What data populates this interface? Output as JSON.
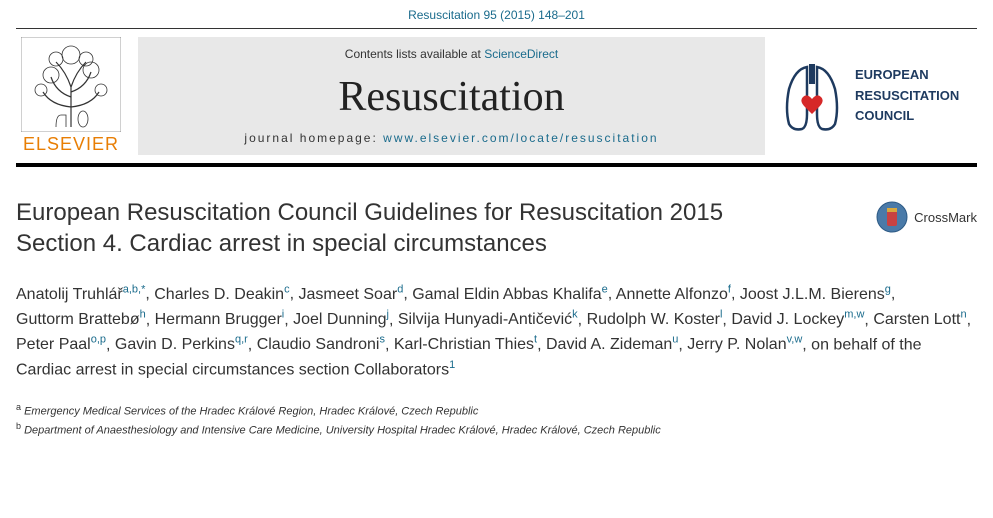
{
  "citation": "Resuscitation 95 (2015) 148–201",
  "masthead": {
    "elsevier_label": "ELSEVIER",
    "contents_prefix": "Contents lists available at ",
    "sciencedirect": "ScienceDirect",
    "journal_title": "Resuscitation",
    "homepage_prefix": "journal homepage: ",
    "homepage_url": "www.elsevier.com/locate/resuscitation",
    "erc_line1": "EUROPEAN",
    "erc_line2": "RESUSCITATION",
    "erc_line3": "COUNCIL"
  },
  "colors": {
    "link": "#1a6b8c",
    "elsevier_orange": "#e87e04",
    "erc_navy": "#1e3a5f",
    "erc_red": "#d62828",
    "gray_box": "#e8e8e8",
    "crossmark_blue": "#4a7aa8",
    "crossmark_red": "#c84242",
    "crossmark_yellow": "#d9a83e"
  },
  "article": {
    "title_line1": "European Resuscitation Council Guidelines for Resuscitation 2015",
    "title_line2": "Section 4. Cardiac arrest in special circumstances",
    "crossmark_label": "CrossMark"
  },
  "authors": [
    {
      "name": "Anatolij Truhlář",
      "aff": "a,b,*"
    },
    {
      "name": "Charles D. Deakin",
      "aff": "c"
    },
    {
      "name": "Jasmeet Soar",
      "aff": "d"
    },
    {
      "name": "Gamal Eldin Abbas Khalifa",
      "aff": "e"
    },
    {
      "name": "Annette Alfonzo",
      "aff": "f"
    },
    {
      "name": "Joost J.L.M. Bierens",
      "aff": "g"
    },
    {
      "name": "Guttorm Brattebø",
      "aff": "h"
    },
    {
      "name": "Hermann Brugger",
      "aff": "i"
    },
    {
      "name": "Joel Dunning",
      "aff": "j"
    },
    {
      "name": "Silvija Hunyadi-Antičević",
      "aff": "k"
    },
    {
      "name": "Rudolph W. Koster",
      "aff": "l"
    },
    {
      "name": "David J. Lockey",
      "aff": "m,w"
    },
    {
      "name": "Carsten Lott",
      "aff": "n"
    },
    {
      "name": "Peter Paal",
      "aff": "o,p"
    },
    {
      "name": "Gavin D. Perkins",
      "aff": "q,r"
    },
    {
      "name": "Claudio Sandroni",
      "aff": "s"
    },
    {
      "name": "Karl-Christian Thies",
      "aff": "t"
    },
    {
      "name": "David A. Zideman",
      "aff": "u"
    },
    {
      "name": "Jerry P. Nolan",
      "aff": "v,w"
    }
  ],
  "authors_tail": ", on behalf of the Cardiac arrest in special circumstances section Collaborators",
  "authors_tail_sup": "1",
  "affiliations": [
    {
      "label": "a",
      "text": "Emergency Medical Services of the Hradec Králové Region, Hradec Králové, Czech Republic"
    },
    {
      "label": "b",
      "text": "Department of Anaesthesiology and Intensive Care Medicine, University Hospital Hradec Králové, Hradec Králové, Czech Republic"
    }
  ]
}
